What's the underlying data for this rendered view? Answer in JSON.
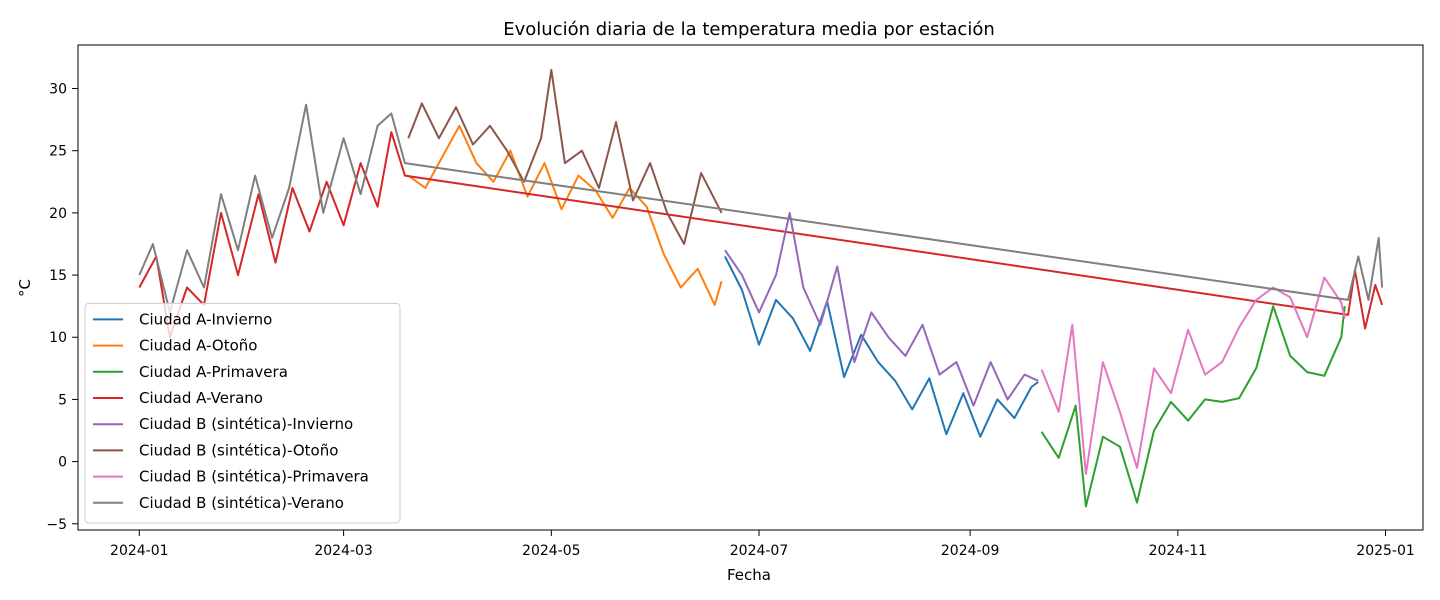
{
  "chart_data": {
    "type": "line",
    "title": "Evolución diaria de la temperatura media por estación",
    "xlabel": "Fecha",
    "ylabel": "°C",
    "xlim": [
      "2023-12-14",
      "2025-01-12"
    ],
    "ylim": [
      -5.5,
      33.5
    ],
    "x_ticks": [
      "2024-01",
      "2024-03",
      "2024-05",
      "2024-07",
      "2024-09",
      "2024-11",
      "2025-01"
    ],
    "y_ticks": [
      -5,
      0,
      5,
      10,
      15,
      20,
      25,
      30
    ],
    "grid": false,
    "legend_position": "lower-left",
    "series": [
      {
        "name": "Ciudad A-Invierno",
        "color": "#1f77b4",
        "points": [
          [
            "2024-06-21",
            16.5
          ],
          [
            "2024-06-26",
            13.8
          ],
          [
            "2024-07-01",
            9.4
          ],
          [
            "2024-07-06",
            13.0
          ],
          [
            "2024-07-11",
            11.5
          ],
          [
            "2024-07-16",
            8.9
          ],
          [
            "2024-07-21",
            12.9
          ],
          [
            "2024-07-26",
            6.8
          ],
          [
            "2024-07-31",
            10.2
          ],
          [
            "2024-08-05",
            8.0
          ],
          [
            "2024-08-10",
            6.5
          ],
          [
            "2024-08-15",
            4.2
          ],
          [
            "2024-08-20",
            6.7
          ],
          [
            "2024-08-25",
            2.2
          ],
          [
            "2024-08-30",
            5.5
          ],
          [
            "2024-09-04",
            2.0
          ],
          [
            "2024-09-09",
            5.0
          ],
          [
            "2024-09-14",
            3.5
          ],
          [
            "2024-09-19",
            6.0
          ],
          [
            "2024-09-21",
            6.4
          ]
        ]
      },
      {
        "name": "Ciudad A-Otoño",
        "color": "#ff7f0e",
        "points": [
          [
            "2024-03-20",
            23.0
          ],
          [
            "2024-03-25",
            22.0
          ],
          [
            "2024-03-30",
            24.5
          ],
          [
            "2024-04-04",
            27.0
          ],
          [
            "2024-04-09",
            24.0
          ],
          [
            "2024-04-14",
            22.5
          ],
          [
            "2024-04-19",
            25.0
          ],
          [
            "2024-04-24",
            21.3
          ],
          [
            "2024-04-29",
            24.0
          ],
          [
            "2024-05-04",
            20.3
          ],
          [
            "2024-05-09",
            23.0
          ],
          [
            "2024-05-14",
            21.8
          ],
          [
            "2024-05-19",
            19.6
          ],
          [
            "2024-05-24",
            22.0
          ],
          [
            "2024-05-29",
            20.5
          ],
          [
            "2024-06-03",
            16.7
          ],
          [
            "2024-06-08",
            14.0
          ],
          [
            "2024-06-13",
            15.5
          ],
          [
            "2024-06-18",
            12.6
          ],
          [
            "2024-06-20",
            14.5
          ]
        ]
      },
      {
        "name": "Ciudad A-Primavera",
        "color": "#2ca02c",
        "points": [
          [
            "2024-09-22",
            2.4
          ],
          [
            "2024-09-27",
            0.3
          ],
          [
            "2024-10-02",
            4.5
          ],
          [
            "2024-10-05",
            -3.6
          ],
          [
            "2024-10-10",
            2.0
          ],
          [
            "2024-10-15",
            1.2
          ],
          [
            "2024-10-20",
            -3.3
          ],
          [
            "2024-10-25",
            2.5
          ],
          [
            "2024-10-30",
            4.8
          ],
          [
            "2024-11-04",
            3.3
          ],
          [
            "2024-11-09",
            5.0
          ],
          [
            "2024-11-14",
            4.8
          ],
          [
            "2024-11-19",
            5.1
          ],
          [
            "2024-11-24",
            7.5
          ],
          [
            "2024-11-29",
            12.5
          ],
          [
            "2024-12-04",
            8.5
          ],
          [
            "2024-12-09",
            7.2
          ],
          [
            "2024-12-14",
            6.9
          ],
          [
            "2024-12-19",
            10.0
          ],
          [
            "2024-12-20",
            12.5
          ]
        ]
      },
      {
        "name": "Ciudad A-Verano",
        "color": "#d62728",
        "points": [
          [
            "2024-01-01",
            14.0
          ],
          [
            "2024-01-06",
            16.5
          ],
          [
            "2024-01-10",
            10.0
          ],
          [
            "2024-01-15",
            14.0
          ],
          [
            "2024-01-20",
            12.6
          ],
          [
            "2024-01-25",
            20.0
          ],
          [
            "2024-01-30",
            15.0
          ],
          [
            "2024-02-05",
            21.5
          ],
          [
            "2024-02-10",
            16.0
          ],
          [
            "2024-02-15",
            22.0
          ],
          [
            "2024-02-20",
            18.5
          ],
          [
            "2024-02-25",
            22.5
          ],
          [
            "2024-03-01",
            19.0
          ],
          [
            "2024-03-06",
            24.0
          ],
          [
            "2024-03-11",
            20.5
          ],
          [
            "2024-03-15",
            26.5
          ],
          [
            "2024-03-19",
            23.0
          ],
          [
            "2024-12-21",
            11.8
          ],
          [
            "2024-12-23",
            15.4
          ],
          [
            "2024-12-26",
            10.7
          ],
          [
            "2024-12-29",
            14.2
          ],
          [
            "2024-12-31",
            12.6
          ]
        ]
      },
      {
        "name": "Ciudad B (sintética)-Invierno",
        "color": "#9467bd",
        "points": [
          [
            "2024-06-21",
            17.0
          ],
          [
            "2024-06-26",
            15.0
          ],
          [
            "2024-07-01",
            12.0
          ],
          [
            "2024-07-06",
            15.0
          ],
          [
            "2024-07-10",
            20.0
          ],
          [
            "2024-07-14",
            14.0
          ],
          [
            "2024-07-19",
            11.0
          ],
          [
            "2024-07-24",
            15.7
          ],
          [
            "2024-07-29",
            8.0
          ],
          [
            "2024-08-03",
            12.0
          ],
          [
            "2024-08-08",
            10.0
          ],
          [
            "2024-08-13",
            8.5
          ],
          [
            "2024-08-18",
            11.0
          ],
          [
            "2024-08-23",
            7.0
          ],
          [
            "2024-08-28",
            8.0
          ],
          [
            "2024-09-02",
            4.5
          ],
          [
            "2024-09-07",
            8.0
          ],
          [
            "2024-09-12",
            5.0
          ],
          [
            "2024-09-17",
            7.0
          ],
          [
            "2024-09-21",
            6.5
          ]
        ]
      },
      {
        "name": "Ciudad B (sintética)-Otoño",
        "color": "#8c564b",
        "points": [
          [
            "2024-03-20",
            26.0
          ],
          [
            "2024-03-24",
            28.8
          ],
          [
            "2024-03-29",
            26.0
          ],
          [
            "2024-04-03",
            28.5
          ],
          [
            "2024-04-08",
            25.5
          ],
          [
            "2024-04-13",
            27.0
          ],
          [
            "2024-04-18",
            25.0
          ],
          [
            "2024-04-23",
            22.5
          ],
          [
            "2024-04-28",
            26.0
          ],
          [
            "2024-05-01",
            31.5
          ],
          [
            "2024-05-05",
            24.0
          ],
          [
            "2024-05-10",
            25.0
          ],
          [
            "2024-05-15",
            22.0
          ],
          [
            "2024-05-20",
            27.3
          ],
          [
            "2024-05-25",
            21.0
          ],
          [
            "2024-05-30",
            24.0
          ],
          [
            "2024-06-04",
            20.0
          ],
          [
            "2024-06-09",
            17.5
          ],
          [
            "2024-06-14",
            23.2
          ],
          [
            "2024-06-20",
            20.0
          ]
        ]
      },
      {
        "name": "Ciudad B (sintética)-Primavera",
        "color": "#e377c2",
        "points": [
          [
            "2024-09-22",
            7.4
          ],
          [
            "2024-09-27",
            4.0
          ],
          [
            "2024-10-01",
            11.0
          ],
          [
            "2024-10-05",
            -1.0
          ],
          [
            "2024-10-10",
            8.0
          ],
          [
            "2024-10-15",
            4.0
          ],
          [
            "2024-10-20",
            -0.5
          ],
          [
            "2024-10-25",
            7.5
          ],
          [
            "2024-10-30",
            5.5
          ],
          [
            "2024-11-04",
            10.6
          ],
          [
            "2024-11-09",
            7.0
          ],
          [
            "2024-11-14",
            8.0
          ],
          [
            "2024-11-19",
            10.8
          ],
          [
            "2024-11-24",
            13.0
          ],
          [
            "2024-11-29",
            14.0
          ],
          [
            "2024-12-04",
            13.2
          ],
          [
            "2024-12-09",
            10.0
          ],
          [
            "2024-12-14",
            14.8
          ],
          [
            "2024-12-19",
            12.8
          ],
          [
            "2024-12-20",
            11.5
          ]
        ]
      },
      {
        "name": "Ciudad B (sintética)-Verano",
        "color": "#7f7f7f",
        "points": [
          [
            "2024-01-01",
            15.0
          ],
          [
            "2024-01-05",
            17.5
          ],
          [
            "2024-01-10",
            12.0
          ],
          [
            "2024-01-15",
            17.0
          ],
          [
            "2024-01-20",
            14.0
          ],
          [
            "2024-01-25",
            21.5
          ],
          [
            "2024-01-30",
            17.0
          ],
          [
            "2024-02-04",
            23.0
          ],
          [
            "2024-02-09",
            18.0
          ],
          [
            "2024-02-14",
            22.0
          ],
          [
            "2024-02-19",
            28.7
          ],
          [
            "2024-02-24",
            20.0
          ],
          [
            "2024-03-01",
            26.0
          ],
          [
            "2024-03-06",
            21.5
          ],
          [
            "2024-03-11",
            27.0
          ],
          [
            "2024-03-15",
            28.0
          ],
          [
            "2024-03-19",
            24.0
          ],
          [
            "2024-12-21",
            13.0
          ],
          [
            "2024-12-24",
            16.5
          ],
          [
            "2024-12-27",
            13.0
          ],
          [
            "2024-12-30",
            18.0
          ],
          [
            "2024-12-31",
            14.0
          ]
        ]
      }
    ]
  }
}
